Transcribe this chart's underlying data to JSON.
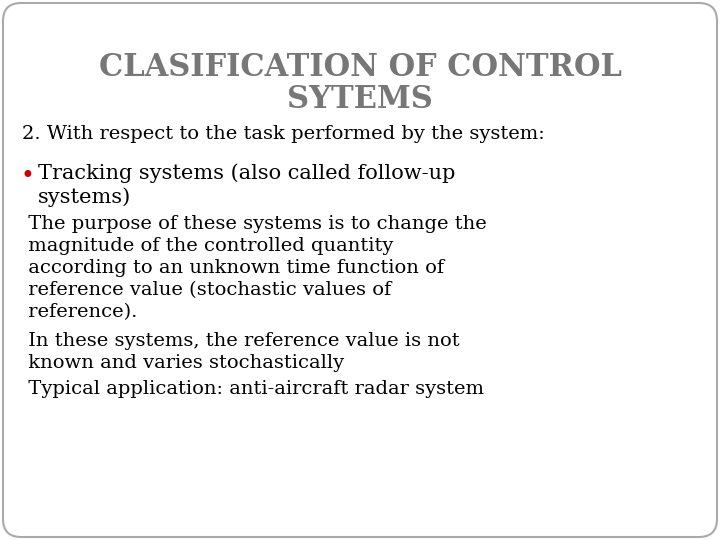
{
  "title_line1": "CLASIFICATION OF CONTROL",
  "title_line2": "SYTEMS",
  "title_color": "#777777",
  "title_fontsize": 22,
  "background_color": "#ffffff",
  "border_color": "#aaaaaa",
  "subtitle": "2. With respect to the task performed by the system:",
  "subtitle_fontsize": 14,
  "subtitle_color": "#000000",
  "bullet_color": "#cc0000",
  "bullet_char": "•",
  "bullet_text_line1": "Tracking systems (also called follow-up",
  "bullet_text_line2": "systems)",
  "body_lines": [
    " The purpose of these systems is to change the\n magnitude of the controlled quantity\n according to an unknown time function of\n reference value (stochastic values of\n reference).",
    " In these systems, the reference value is not\n known and varies stochastically",
    " Typical application: anti-aircraft radar system"
  ],
  "body_fontsize": 14,
  "body_color": "#000000",
  "font_family": "DejaVu Serif"
}
